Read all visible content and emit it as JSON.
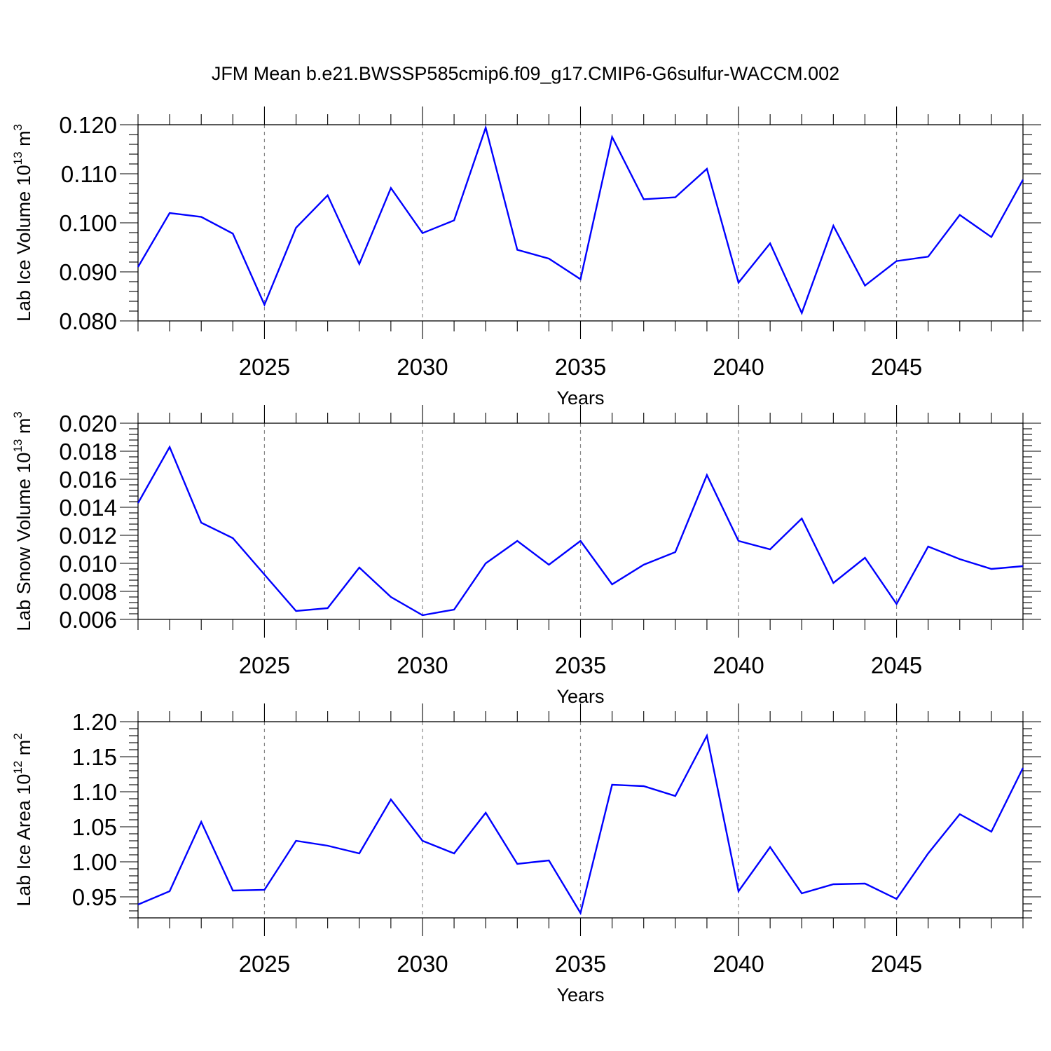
{
  "title": "JFM Mean b.e21.BWSSP585cmip6.f09_g17.CMIP6-G6sulfur-WACCM.002",
  "line_color": "#0000ff",
  "chart_data": [
    {
      "type": "line",
      "xlabel": "Years",
      "ylabel": {
        "text": "Lab Ice Volume 10",
        "exp": "13",
        "unit": "m",
        "unit_exp": "3"
      },
      "xlim": [
        2021,
        2049
      ],
      "ylim": [
        0.08,
        0.12
      ],
      "yticks": [
        "0.080",
        "0.090",
        "0.100",
        "0.110",
        "0.120"
      ],
      "xticks": [
        "2025",
        "2030",
        "2035",
        "2040",
        "2045"
      ],
      "grid": "vertical dashed",
      "x": [
        2021,
        2022,
        2023,
        2024,
        2025,
        2026,
        2027,
        2028,
        2029,
        2030,
        2031,
        2032,
        2033,
        2034,
        2035,
        2036,
        2037,
        2038,
        2039,
        2040,
        2041,
        2042,
        2043,
        2044,
        2045,
        2046,
        2047,
        2048,
        2049
      ],
      "series": [
        {
          "values": [
            0.091,
            0.102,
            0.1012,
            0.0978,
            0.0833,
            0.099,
            0.1056,
            0.0916,
            0.1071,
            0.0979,
            0.1005,
            0.1194,
            0.0945,
            0.0927,
            0.0885,
            0.1175,
            0.1048,
            0.1052,
            0.111,
            0.0878,
            0.0958,
            0.0816,
            0.0994,
            0.0872,
            0.0922,
            0.0931,
            0.1016,
            0.0971,
            0.1088
          ]
        }
      ]
    },
    {
      "type": "line",
      "xlabel": "Years",
      "ylabel": {
        "text": "Lab Snow Volume 10",
        "exp": "13",
        "unit": "m",
        "unit_exp": "3"
      },
      "xlim": [
        2021,
        2049
      ],
      "ylim": [
        0.006,
        0.02
      ],
      "yticks": [
        "0.006",
        "0.008",
        "0.010",
        "0.012",
        "0.014",
        "0.016",
        "0.018",
        "0.020"
      ],
      "xticks": [
        "2025",
        "2030",
        "2035",
        "2040",
        "2045"
      ],
      "grid": "vertical dashed",
      "x": [
        2021,
        2022,
        2023,
        2024,
        2025,
        2026,
        2027,
        2028,
        2029,
        2030,
        2031,
        2032,
        2033,
        2034,
        2035,
        2036,
        2037,
        2038,
        2039,
        2040,
        2041,
        2042,
        2043,
        2044,
        2045,
        2046,
        2047,
        2048,
        2049
      ],
      "series": [
        {
          "values": [
            0.0143,
            0.0183,
            0.0129,
            0.0118,
            0.0092,
            0.0066,
            0.0068,
            0.0097,
            0.0076,
            0.0063,
            0.0067,
            0.01,
            0.0116,
            0.0099,
            0.0116,
            0.0085,
            0.0099,
            0.0108,
            0.0163,
            0.0116,
            0.011,
            0.0132,
            0.0086,
            0.0104,
            0.0071,
            0.0112,
            0.0103,
            0.0096,
            0.0098
          ]
        }
      ]
    },
    {
      "type": "line",
      "xlabel": "Years",
      "ylabel": {
        "text": "Lab Ice Area 10",
        "exp": "12",
        "unit": "m",
        "unit_exp": "2"
      },
      "xlim": [
        2021,
        2049
      ],
      "ylim": [
        0.92,
        1.2
      ],
      "yticks": [
        "0.95",
        "1.00",
        "1.05",
        "1.10",
        "1.15",
        "1.20"
      ],
      "xticks": [
        "2025",
        "2030",
        "2035",
        "2040",
        "2045"
      ],
      "grid": "vertical dashed",
      "x": [
        2021,
        2022,
        2023,
        2024,
        2025,
        2026,
        2027,
        2028,
        2029,
        2030,
        2031,
        2032,
        2033,
        2034,
        2035,
        2036,
        2037,
        2038,
        2039,
        2040,
        2041,
        2042,
        2043,
        2044,
        2045,
        2046,
        2047,
        2048,
        2049
      ],
      "series": [
        {
          "values": [
            0.939,
            0.958,
            1.057,
            0.959,
            0.96,
            1.03,
            1.023,
            1.012,
            1.089,
            1.03,
            1.012,
            1.07,
            0.997,
            1.002,
            0.927,
            1.11,
            1.108,
            1.094,
            1.18,
            0.958,
            1.021,
            0.955,
            0.968,
            0.969,
            0.947,
            1.012,
            1.068,
            1.043,
            1.134
          ]
        }
      ]
    }
  ]
}
